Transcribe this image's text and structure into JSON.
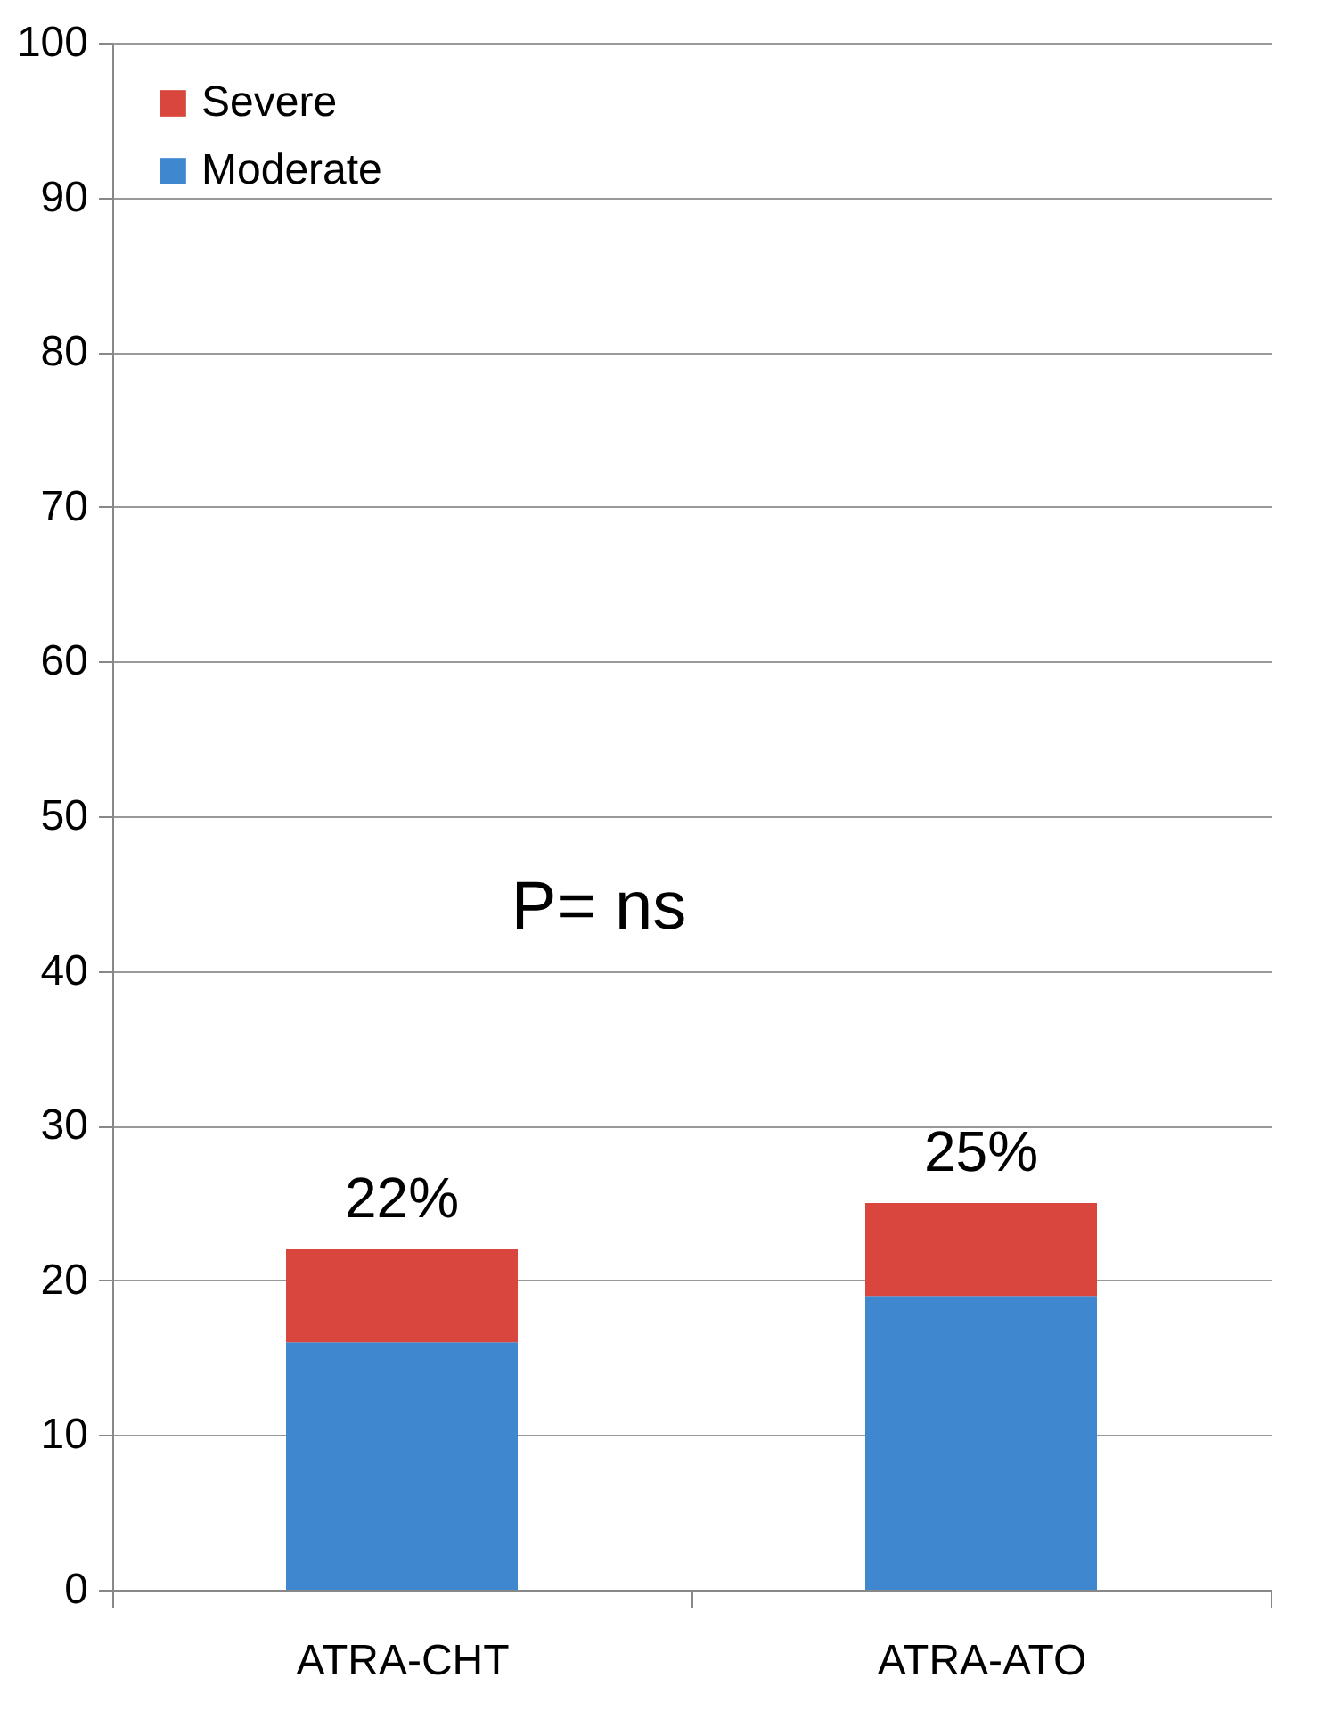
{
  "chart_data": {
    "type": "bar",
    "stacked": true,
    "categories": [
      "ATRA-CHT",
      "ATRA-ATO"
    ],
    "series": [
      {
        "name": "Moderate",
        "color": "#3f87cf",
        "values": [
          16,
          19
        ]
      },
      {
        "name": "Severe",
        "color": "#d8463d",
        "values": [
          6,
          6
        ]
      }
    ],
    "totals": [
      "22%",
      "25%"
    ],
    "annotations": [
      "P= ns"
    ],
    "ylim": [
      0,
      100
    ],
    "yticks": [
      0,
      10,
      20,
      30,
      40,
      50,
      60,
      70,
      80,
      90,
      100
    ],
    "grid": "y",
    "legend": "top left"
  }
}
